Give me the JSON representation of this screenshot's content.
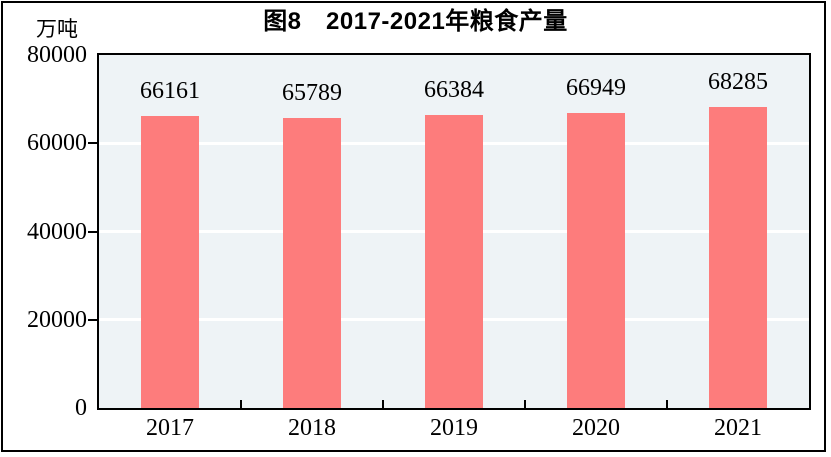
{
  "figure": {
    "title": "图8　2017-2021年粮食产量",
    "unit_label": "万吨"
  },
  "chart_data": {
    "type": "bar",
    "title": "图8　2017-2021年粮食产量",
    "unit_label": "万吨",
    "categories": [
      "2017",
      "2018",
      "2019",
      "2020",
      "2021"
    ],
    "values": [
      66161,
      65789,
      66384,
      66949,
      68285
    ],
    "value_labels": [
      "66161",
      "65789",
      "66384",
      "66949",
      "68285"
    ],
    "xlabel": "",
    "ylabel": "万吨",
    "ylim": [
      0,
      80000
    ],
    "yticks": [
      0,
      20000,
      40000,
      60000,
      80000
    ],
    "ytick_labels": [
      "0",
      "20000",
      "40000",
      "60000",
      "80000"
    ],
    "gridline_values": [
      20000,
      40000,
      60000
    ],
    "grid": "horizontal",
    "legend": "none",
    "colors": {
      "bar": "#fd7c7c",
      "plot_background": "#eef3f6",
      "gridline": "#ffffff",
      "axis_border": "#000000",
      "text": "#000000"
    }
  }
}
